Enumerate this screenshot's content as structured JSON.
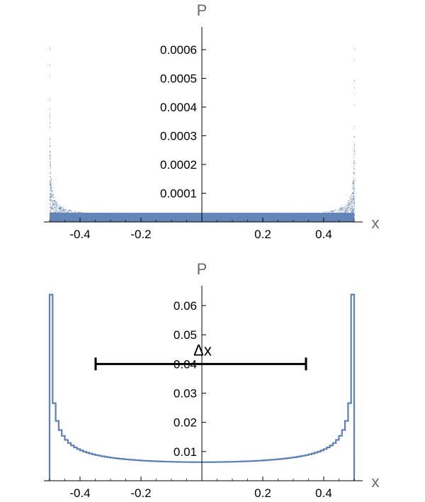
{
  "chart_data": [
    {
      "type": "scatter",
      "xlabel": "x",
      "ylabel": "P",
      "xlim": [
        -0.5,
        0.5
      ],
      "ylim": [
        0,
        0.00065
      ],
      "grid": false,
      "x_ticks": [
        "-0.4",
        "-0.2",
        "0.2",
        "0.4"
      ],
      "x_tick_values": [
        -0.4,
        -0.2,
        0.2,
        0.4
      ],
      "y_ticks": [
        "0.0001",
        "0.0002",
        "0.0003",
        "0.0004",
        "0.0005",
        "0.0006"
      ],
      "y_tick_values": [
        0.0001,
        0.0002,
        0.0003,
        0.0004,
        0.0005,
        0.0006
      ],
      "color": "#5e81b5",
      "series": [
        {
          "description_points_x": [
            -0.5,
            -0.49,
            -0.48,
            -0.47,
            -0.45,
            -0.43,
            -0.4,
            -0.35,
            -0.3,
            -0.2,
            -0.1,
            0,
            0.1,
            0.2,
            0.3,
            0.35,
            0.4,
            0.43,
            0.45,
            0.47,
            0.48,
            0.49,
            0.5
          ],
          "envelope_y": [
            0.00064,
            0.00025,
            0.00016,
            0.00012,
            8.5e-05,
            7e-05,
            5.7e-05,
            4.7e-05,
            4.2e-05,
            3.6e-05,
            3.3e-05,
            3.2e-05,
            3.3e-05,
            3.6e-05,
            4.2e-05,
            4.7e-05,
            5.7e-05,
            7e-05,
            8.5e-05,
            0.00012,
            0.00016,
            0.00025,
            0.00064
          ]
        }
      ]
    },
    {
      "type": "line",
      "xlabel": "x",
      "ylabel": "P",
      "xlim": [
        -0.5,
        0.5
      ],
      "ylim": [
        0,
        0.066
      ],
      "grid": false,
      "x_ticks": [
        "-0.4",
        "-0.2",
        "0.2",
        "0.4"
      ],
      "x_tick_values": [
        -0.4,
        -0.2,
        0.2,
        0.4
      ],
      "y_ticks": [
        "0.01",
        "0.02",
        "0.03",
        "0.04",
        "0.05",
        "0.06"
      ],
      "y_tick_values": [
        0.01,
        0.02,
        0.03,
        0.04,
        0.05,
        0.06
      ],
      "color": "#5e81b5",
      "histogram_bins": 100,
      "annotation": {
        "label": "Δx",
        "x_start": -0.35,
        "x_end": 0.35,
        "y": 0.04
      }
    }
  ]
}
